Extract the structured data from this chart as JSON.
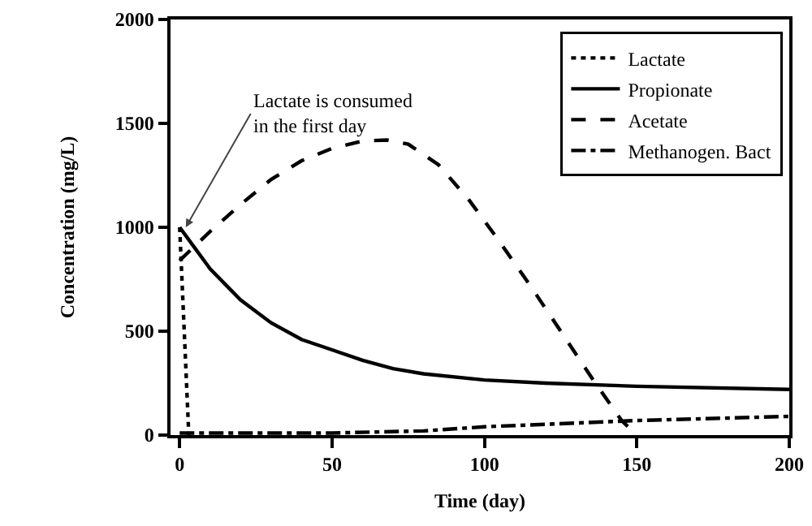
{
  "chart_data": {
    "type": "line",
    "xlabel": "Time (day)",
    "ylabel": "Concentration (mg/L)",
    "xlim": [
      -3,
      200
    ],
    "xticks": [
      0,
      50,
      100,
      150,
      200
    ],
    "ylim": [
      0,
      2000
    ],
    "yticks": [
      0,
      500,
      1000,
      1500,
      2000
    ],
    "grid": false,
    "legend": "top right",
    "marker": "none",
    "annotations": [
      {
        "text": "Lactate is consumed\nin the first day",
        "x": 2,
        "y": 1000
      }
    ],
    "series": [
      {
        "name": "Lactate",
        "color": "#000000",
        "line_style": "dotted",
        "x": [
          0,
          3
        ],
        "values": [
          1000,
          0
        ]
      },
      {
        "name": "Propionate",
        "color": "#000000",
        "line_style": "solid",
        "x": [
          0,
          5,
          10,
          20,
          30,
          40,
          50,
          60,
          70,
          80,
          100,
          120,
          150,
          200
        ],
        "values": [
          1000,
          900,
          800,
          650,
          540,
          460,
          410,
          360,
          320,
          295,
          265,
          250,
          235,
          220
        ]
      },
      {
        "name": "Acetate",
        "color": "#000000",
        "line_style": "dashed",
        "x": [
          0,
          10,
          20,
          30,
          40,
          50,
          60,
          68,
          75,
          85,
          95,
          105,
          115,
          125,
          135,
          145,
          150
        ],
        "values": [
          840,
          980,
          1110,
          1230,
          1320,
          1380,
          1415,
          1420,
          1400,
          1300,
          1130,
          930,
          720,
          500,
          280,
          70,
          0
        ]
      },
      {
        "name": "Methanogen. Bact",
        "color": "#000000",
        "line_style": "dashdot",
        "x": [
          0,
          50,
          80,
          100,
          150,
          200
        ],
        "values": [
          10,
          10,
          20,
          40,
          70,
          90
        ]
      }
    ]
  }
}
